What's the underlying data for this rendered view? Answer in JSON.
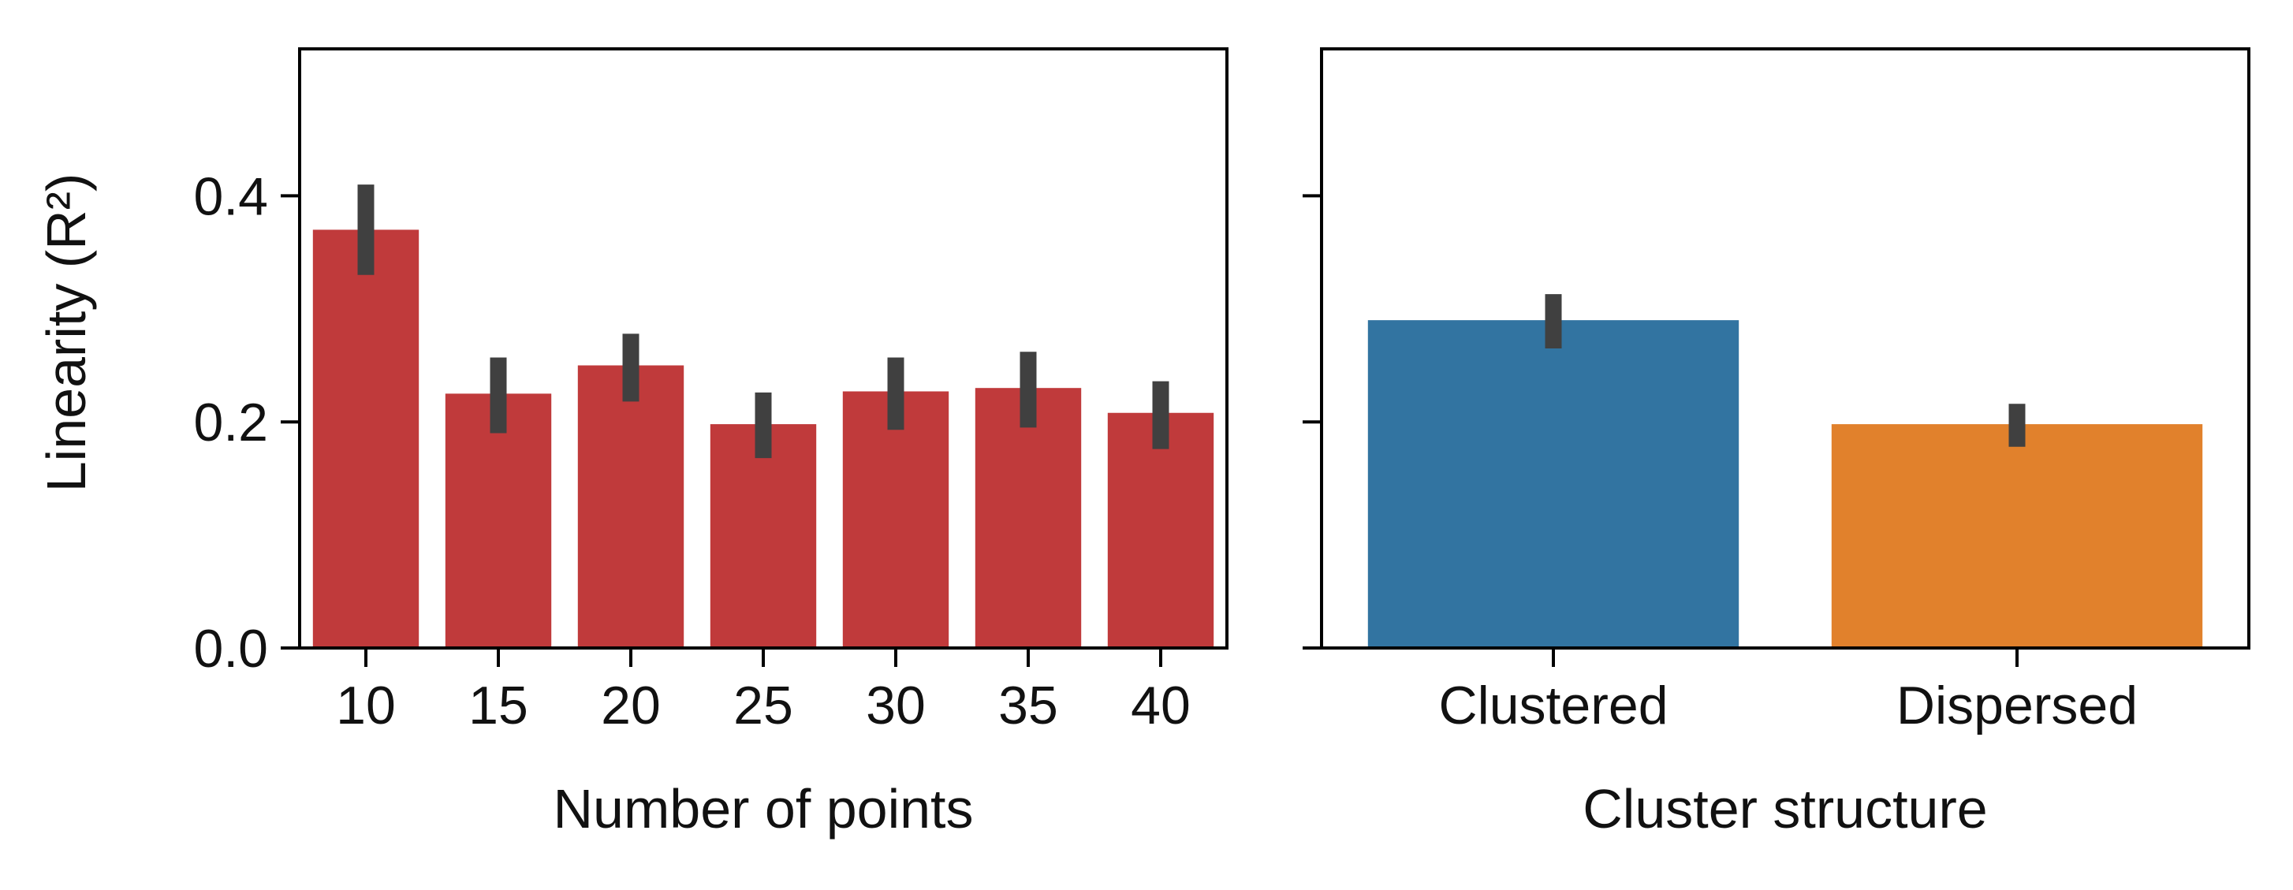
{
  "chart_data": [
    {
      "type": "bar",
      "categories": [
        "10",
        "15",
        "20",
        "25",
        "30",
        "35",
        "40"
      ],
      "values": [
        0.37,
        0.225,
        0.25,
        0.198,
        0.227,
        0.23,
        0.208
      ],
      "error_low": [
        0.33,
        0.19,
        0.218,
        0.168,
        0.193,
        0.195,
        0.176
      ],
      "error_high": [
        0.41,
        0.257,
        0.278,
        0.226,
        0.257,
        0.262,
        0.236
      ],
      "xlabel": "Number of points",
      "ylabel": "Linearity (R²)",
      "ylim": [
        0,
        0.53
      ],
      "yticks": [
        0.0,
        0.2,
        0.4
      ],
      "ytick_labels": [
        "0.0",
        "0.2",
        "0.4"
      ],
      "bar_color": "#c03a3b",
      "error_color": "#404040",
      "grid": false
    },
    {
      "type": "bar",
      "categories": [
        "Clustered",
        "Dispersed"
      ],
      "values": [
        0.29,
        0.198
      ],
      "error_low": [
        0.265,
        0.178
      ],
      "error_high": [
        0.313,
        0.216
      ],
      "xlabel": "Cluster structure",
      "ylabel": "",
      "ylim": [
        0,
        0.53
      ],
      "yticks": [
        0.0,
        0.2,
        0.4
      ],
      "shared_y": true,
      "bar_colors": [
        "#3274a1",
        "#e1812c"
      ],
      "error_color": "#404040",
      "grid": false
    }
  ]
}
